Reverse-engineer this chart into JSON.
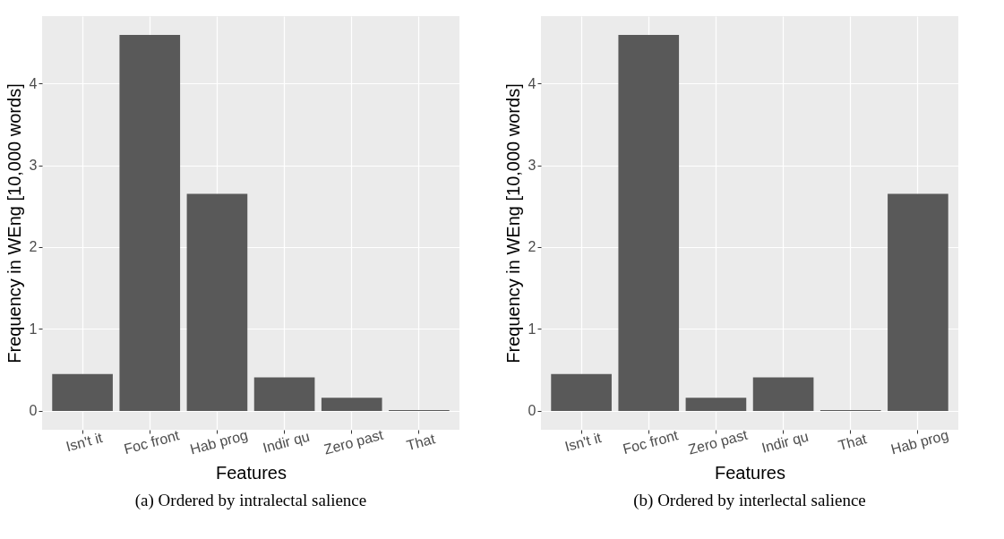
{
  "chart_data": [
    {
      "type": "bar",
      "title": "(a) Ordered by intralectal salience",
      "xlabel": "Features",
      "ylabel": "Frequency in WEng [10,000 words]",
      "categories": [
        "Isn't it",
        "Foc front",
        "Hab prog",
        "Indir qu",
        "Zero past",
        "That"
      ],
      "values": [
        0.45,
        4.59,
        2.65,
        0.41,
        0.16,
        0.01
      ],
      "color": "#595959",
      "ylim": [
        -0.23,
        4.82
      ],
      "yticks": [
        0,
        1,
        2,
        3,
        4
      ],
      "grid": true
    },
    {
      "type": "bar",
      "title": "(b) Ordered by interlectal salience",
      "xlabel": "Features",
      "ylabel": "Frequency in WEng [10,000 words]",
      "categories": [
        "Isn't it",
        "Foc front",
        "Zero past",
        "Indir qu",
        "That",
        "Hab prog"
      ],
      "values": [
        0.45,
        4.59,
        0.16,
        0.41,
        0.01,
        2.65
      ],
      "color": "#595959",
      "ylim": [
        -0.23,
        4.82
      ],
      "yticks": [
        0,
        1,
        2,
        3,
        4
      ],
      "grid": true
    }
  ]
}
